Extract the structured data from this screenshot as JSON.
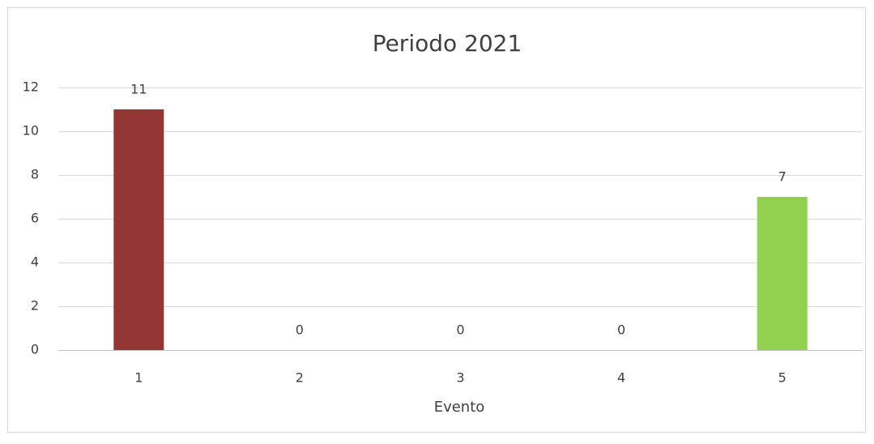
{
  "chart_data": {
    "type": "bar",
    "title": "Periodo 2021",
    "x_label": "Evento",
    "categories": [
      "1",
      "2",
      "3",
      "4",
      "5"
    ],
    "values": [
      11,
      0,
      0,
      0,
      7
    ],
    "colors": [
      "#943634",
      null,
      null,
      null,
      "#92d050"
    ],
    "ylim": [
      0,
      12
    ],
    "yticks": [
      0,
      2,
      4,
      6,
      8,
      10,
      12
    ],
    "grid": true
  }
}
